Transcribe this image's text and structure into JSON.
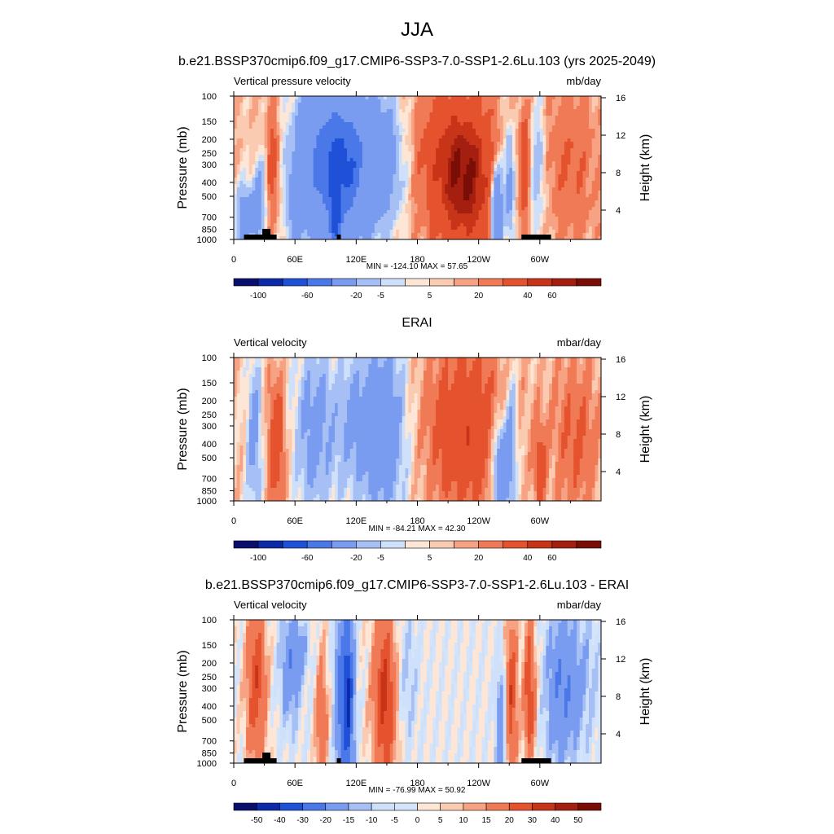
{
  "figure": {
    "title": "JJA"
  },
  "chart_data": [
    {
      "type": "heatmap",
      "title": "b.e21.BSSP370cmip6.f09_g17.CMIP6-SSP3-7.0-SSP1-2.6Lu.103 (yrs 2025-2049)",
      "left_string": "Vertical pressure velocity",
      "right_string": "mb/day",
      "ylabel": "Pressure (mb)",
      "y2label": "Height (km)",
      "x_ticks": [
        "0",
        "60E",
        "120E",
        "180",
        "120W",
        "60W"
      ],
      "y_ticks": [
        "100",
        "150",
        "200",
        "250",
        "300",
        "400",
        "500",
        "700",
        "850",
        "1000"
      ],
      "y2_ticks": [
        "16",
        "12",
        "8",
        "4"
      ],
      "stats": "MIN = -124.10  MAX =  57.65",
      "colorbar_labels": [
        "-100",
        "-60",
        "-20",
        "-5",
        "5",
        "20",
        "40",
        "60"
      ],
      "colorbar_colors": [
        "#0a0f6e",
        "#0c2aa8",
        "#1f50d8",
        "#4a78e8",
        "#7a9cf0",
        "#a6c0f6",
        "#cfe0fb",
        "#fde6d6",
        "#fbcbb1",
        "#f6a283",
        "#f07a55",
        "#e5522e",
        "#c83418",
        "#a51f10",
        "#7a0e06"
      ],
      "range": [
        -124.1,
        57.65
      ],
      "topography": true
    },
    {
      "type": "heatmap",
      "title": "ERAI",
      "left_string": "Vertical velocity",
      "right_string": "mbar/day",
      "ylabel": "Pressure (mb)",
      "y2label": "Height (km)",
      "x_ticks": [
        "0",
        "60E",
        "120E",
        "180",
        "120W",
        "60W"
      ],
      "y_ticks": [
        "100",
        "150",
        "200",
        "250",
        "300",
        "400",
        "500",
        "700",
        "850",
        "1000"
      ],
      "y2_ticks": [
        "16",
        "12",
        "8",
        "4"
      ],
      "stats": "MIN = -84.21  MAX =  42.30",
      "colorbar_labels": [
        "-100",
        "-60",
        "-20",
        "-5",
        "5",
        "20",
        "40",
        "60"
      ],
      "colorbar_colors": [
        "#0a0f6e",
        "#0c2aa8",
        "#1f50d8",
        "#4a78e8",
        "#7a9cf0",
        "#a6c0f6",
        "#cfe0fb",
        "#fde6d6",
        "#fbcbb1",
        "#f6a283",
        "#f07a55",
        "#e5522e",
        "#c83418",
        "#a51f10",
        "#7a0e06"
      ],
      "range": [
        -84.21,
        42.3
      ],
      "topography": false
    },
    {
      "type": "heatmap",
      "title": "b.e21.BSSP370cmip6.f09_g17.CMIP6-SSP3-7.0-SSP1-2.6Lu.103 - ERAI",
      "left_string": "Vertical velocity",
      "right_string": "mbar/day",
      "ylabel": "Pressure (mb)",
      "y2label": "Height (km)",
      "x_ticks": [
        "0",
        "60E",
        "120E",
        "180",
        "120W",
        "60W"
      ],
      "y_ticks": [
        "100",
        "150",
        "200",
        "250",
        "300",
        "400",
        "500",
        "700",
        "850",
        "1000"
      ],
      "y2_ticks": [
        "16",
        "12",
        "8",
        "4"
      ],
      "stats": "MIN = -76.99  MAX =  50.92",
      "colorbar_labels": [
        "-50",
        "-40",
        "-30",
        "-20",
        "-15",
        "-10",
        "-5",
        "0",
        "5",
        "10",
        "15",
        "20",
        "30",
        "40",
        "50"
      ],
      "colorbar_colors": [
        "#0a0f6e",
        "#0c2aa8",
        "#1f50d8",
        "#4a78e8",
        "#7a9cf0",
        "#a6c0f6",
        "#cfe0fb",
        "#d4e5fb",
        "#fde6d6",
        "#fbcbb1",
        "#f6a283",
        "#f07a55",
        "#e5522e",
        "#c83418",
        "#a51f10",
        "#7a0e06"
      ],
      "range": [
        -76.99,
        50.92
      ],
      "topography": true
    }
  ]
}
